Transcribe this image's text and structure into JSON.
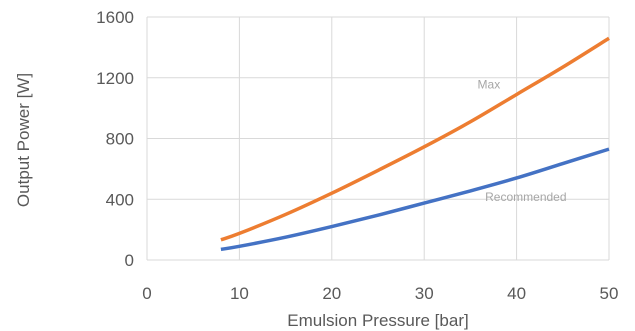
{
  "chart_data": {
    "type": "line",
    "title": "",
    "xlabel": "Emulsion Pressure [bar]",
    "ylabel": "Output Power  [W]",
    "xlim": [
      0,
      50
    ],
    "ylim": [
      0,
      1600
    ],
    "x_ticks": [
      0,
      10,
      20,
      30,
      40,
      50
    ],
    "y_ticks": [
      0,
      400,
      800,
      1200,
      1600
    ],
    "grid": true,
    "legend": "none",
    "series": [
      {
        "name": "Max",
        "color": "#ED7D31",
        "x": [
          8,
          10,
          15,
          20,
          25,
          30,
          35,
          40,
          45,
          50
        ],
        "y": [
          133,
          175,
          300,
          440,
          590,
          745,
          910,
          1090,
          1270,
          1460
        ]
      },
      {
        "name": "Recommended",
        "color": "#4472C4",
        "x": [
          8,
          10,
          15,
          20,
          25,
          30,
          35,
          40,
          45,
          50
        ],
        "y": [
          70,
          90,
          150,
          220,
          295,
          375,
          455,
          540,
          635,
          730
        ]
      }
    ]
  }
}
